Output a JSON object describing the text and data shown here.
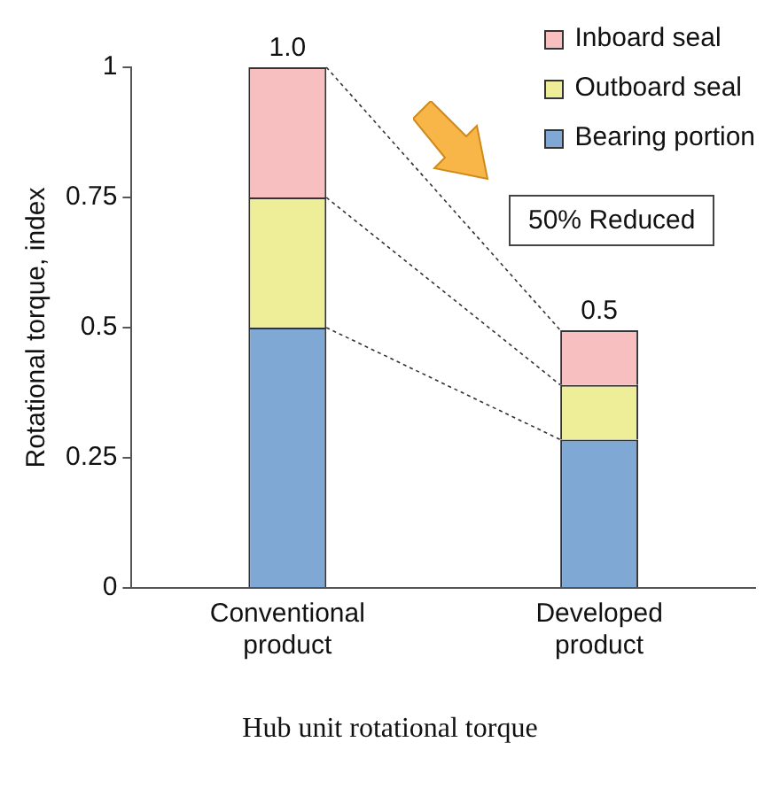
{
  "chart_data": {
    "type": "bar",
    "title": "Hub unit rotational torque",
    "ylabel": "Rotational torque, index",
    "categories": [
      "Conventional product",
      "Developed product"
    ],
    "series": [
      {
        "name": "Bearing portion",
        "color": "#7fa8d4",
        "values": [
          0.5,
          0.285
        ]
      },
      {
        "name": "Outboard seal",
        "color": "#eeee99",
        "values": [
          0.25,
          0.105
        ]
      },
      {
        "name": "Inboard seal",
        "color": "#f7bfbf",
        "values": [
          0.25,
          0.105
        ]
      }
    ],
    "stacked": true,
    "totals": [
      "1.0",
      "0.5"
    ],
    "ylim": [
      0,
      1
    ],
    "yticks": [
      0,
      0.25,
      0.5,
      0.75,
      1
    ],
    "grid": false,
    "legend": "top right",
    "annotations": [
      "50% Reduced"
    ]
  }
}
